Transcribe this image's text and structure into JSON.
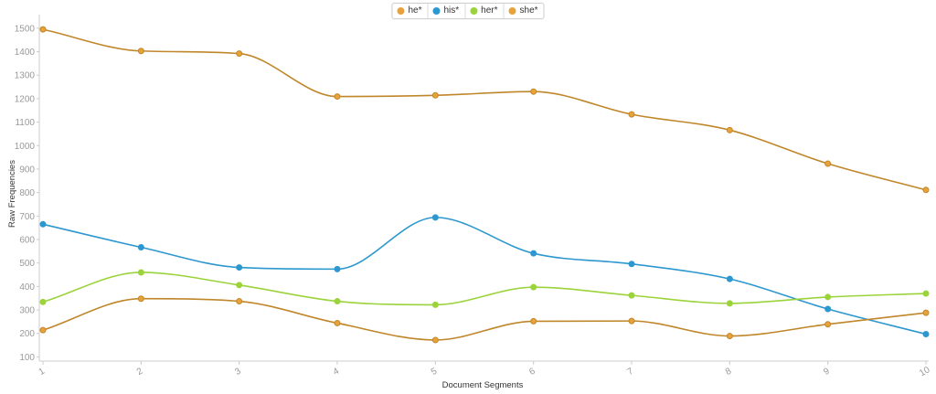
{
  "chart_data": {
    "type": "line",
    "xlabel": "Document Segments",
    "ylabel": "Raw Frequencies",
    "categories": [
      "1",
      "2",
      "3",
      "4",
      "5",
      "6",
      "7",
      "8",
      "9",
      "10"
    ],
    "yticks": [
      "100",
      "200",
      "300",
      "400",
      "500",
      "600",
      "700",
      "800",
      "900",
      "1000",
      "1100",
      "1200",
      "1300",
      "1400",
      "1500"
    ],
    "ylim": [
      90,
      1550
    ],
    "grid": false,
    "legend_position": "top-center",
    "series": [
      {
        "name": "he*",
        "color": "#c0862a",
        "marker": "#e8a23a",
        "values": [
          1495,
          1403,
          1392,
          1209,
          1214,
          1230,
          1133,
          1066,
          923,
          811
        ]
      },
      {
        "name": "his*",
        "color": "#2d97cf",
        "marker": "#2d97cf",
        "values": [
          665,
          567,
          481,
          474,
          694,
          541,
          496,
          432,
          304,
          197
        ]
      },
      {
        "name": "her*",
        "color": "#9bd33b",
        "marker": "#9bd33b",
        "values": [
          334,
          460,
          406,
          337,
          322,
          397,
          362,
          328,
          355,
          370
        ]
      },
      {
        "name": "she*",
        "color": "#c0862a",
        "marker": "#e8a23a",
        "values": [
          214,
          348,
          337,
          244,
          172,
          252,
          253,
          189,
          239,
          288
        ]
      }
    ]
  }
}
